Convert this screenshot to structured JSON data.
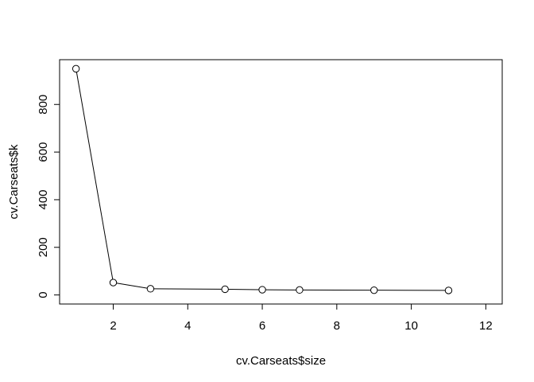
{
  "chart_data": {
    "type": "line",
    "title": "",
    "xlabel": "cv.Carseats$size",
    "ylabel": "cv.Carseats$k",
    "x": [
      1,
      2,
      3,
      5,
      6,
      7,
      9,
      11
    ],
    "y": [
      950,
      52,
      26,
      24,
      22,
      21,
      20,
      19
    ],
    "xlim": [
      0.56,
      12.44
    ],
    "ylim": [
      -38,
      988
    ],
    "xticks": [
      2,
      4,
      6,
      8,
      10,
      12
    ],
    "yticks": [
      0,
      200,
      400,
      600,
      800
    ],
    "grid": false,
    "legend": "none",
    "marker": "open-circle",
    "colors": {
      "line": "#000000",
      "marker_fill": "#ffffff",
      "axis": "#000000"
    }
  }
}
